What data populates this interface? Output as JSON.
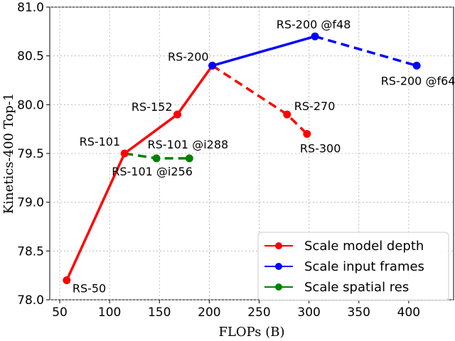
{
  "chart_data": {
    "type": "line",
    "xlabel": "FLOPs (B)",
    "ylabel": "Kinetics-400 Top-1",
    "xlim": [
      40,
      445
    ],
    "ylim": [
      78.0,
      81.0
    ],
    "xticks": [
      50,
      100,
      150,
      200,
      250,
      300,
      350,
      400
    ],
    "yticks": [
      78.0,
      78.5,
      79.0,
      79.5,
      80.0,
      80.5,
      81.0
    ],
    "grid": true,
    "legend_position": "bottom-right",
    "series": [
      {
        "name": "Scale model depth",
        "color": "#ff0000",
        "points": [
          {
            "x": 57,
            "y": 78.2,
            "label": "RS-50"
          },
          {
            "x": 115,
            "y": 79.5,
            "label": "RS-101"
          },
          {
            "x": 168,
            "y": 79.9,
            "label": "RS-152"
          },
          {
            "x": 203,
            "y": 80.4,
            "label": "RS-200"
          }
        ],
        "dashed_branch": [
          {
            "x": 203,
            "y": 80.4
          },
          {
            "x": 278,
            "y": 79.9,
            "label": "RS-270"
          },
          {
            "x": 298,
            "y": 79.7,
            "label": "RS-300"
          }
        ]
      },
      {
        "name": "Scale input frames",
        "color": "#0000ff",
        "points": [
          {
            "x": 203,
            "y": 80.4
          },
          {
            "x": 306,
            "y": 80.7,
            "label": "RS-200 @f48"
          }
        ],
        "dashed_branch": [
          {
            "x": 306,
            "y": 80.7
          },
          {
            "x": 408,
            "y": 80.4,
            "label": "RS-200 @f64"
          }
        ]
      },
      {
        "name": "Scale spatial res",
        "color": "#008000",
        "points": [],
        "dashed_branch": [
          {
            "x": 115,
            "y": 79.5
          },
          {
            "x": 147,
            "y": 79.45,
            "label": "RS-101 @i256"
          },
          {
            "x": 180,
            "y": 79.45,
            "label": "RS-101 @i288"
          }
        ]
      }
    ]
  }
}
